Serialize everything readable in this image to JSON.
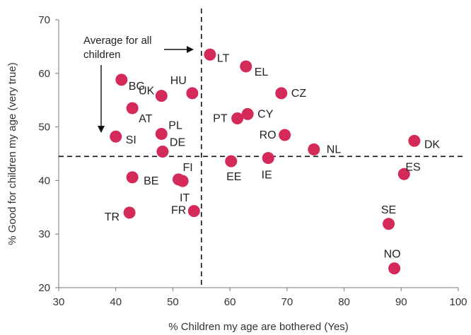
{
  "chart_data": {
    "type": "scatter",
    "xlabel": "% Children my age are bothered (Yes)",
    "ylabel": "% Good for children my age (very true)",
    "xlim": [
      30,
      100
    ],
    "ylim": [
      20,
      70
    ],
    "xticks": [
      "30",
      "40",
      "50",
      "60",
      "70",
      "80",
      "90",
      "100"
    ],
    "yticks": [
      "20",
      "30",
      "40",
      "50",
      "60",
      "70"
    ],
    "grid": false,
    "point_color": "#d42a5a",
    "average": {
      "x": 55,
      "y": 44.5
    },
    "annotation": {
      "line1": "Average for all",
      "line2": "children"
    },
    "points": [
      {
        "label": "LT",
        "x": 56.5,
        "y": 63.5
      },
      {
        "label": "EL",
        "x": 62.8,
        "y": 61.3
      },
      {
        "label": "BG",
        "x": 41.0,
        "y": 58.8
      },
      {
        "label": "HU",
        "x": 53.4,
        "y": 56.3
      },
      {
        "label": "UK",
        "x": 48.0,
        "y": 55.8
      },
      {
        "label": "CZ",
        "x": 69.0,
        "y": 56.3
      },
      {
        "label": "AT",
        "x": 42.9,
        "y": 53.5
      },
      {
        "label": "CY",
        "x": 63.1,
        "y": 52.4
      },
      {
        "label": "PT",
        "x": 61.3,
        "y": 51.6
      },
      {
        "label": "PL",
        "x": 48.0,
        "y": 48.7
      },
      {
        "label": "SI",
        "x": 40.0,
        "y": 48.2
      },
      {
        "label": "RO",
        "x": 69.6,
        "y": 48.5
      },
      {
        "label": "DK",
        "x": 92.3,
        "y": 47.4
      },
      {
        "label": "NL",
        "x": 74.7,
        "y": 45.8
      },
      {
        "label": "DE",
        "x": 48.2,
        "y": 45.4
      },
      {
        "label": "IE",
        "x": 66.7,
        "y": 44.2
      },
      {
        "label": "EE",
        "x": 60.2,
        "y": 43.6
      },
      {
        "label": "ES",
        "x": 90.5,
        "y": 41.2
      },
      {
        "label": "BE",
        "x": 42.9,
        "y": 40.6
      },
      {
        "label": "FI",
        "x": 51.0,
        "y": 40.2
      },
      {
        "label": "IT",
        "x": 51.7,
        "y": 39.9
      },
      {
        "label": "FR",
        "x": 53.7,
        "y": 34.3
      },
      {
        "label": "TR",
        "x": 42.4,
        "y": 34.0
      },
      {
        "label": "SE",
        "x": 87.8,
        "y": 31.9
      },
      {
        "label": "NO",
        "x": 88.8,
        "y": 23.6
      }
    ]
  }
}
